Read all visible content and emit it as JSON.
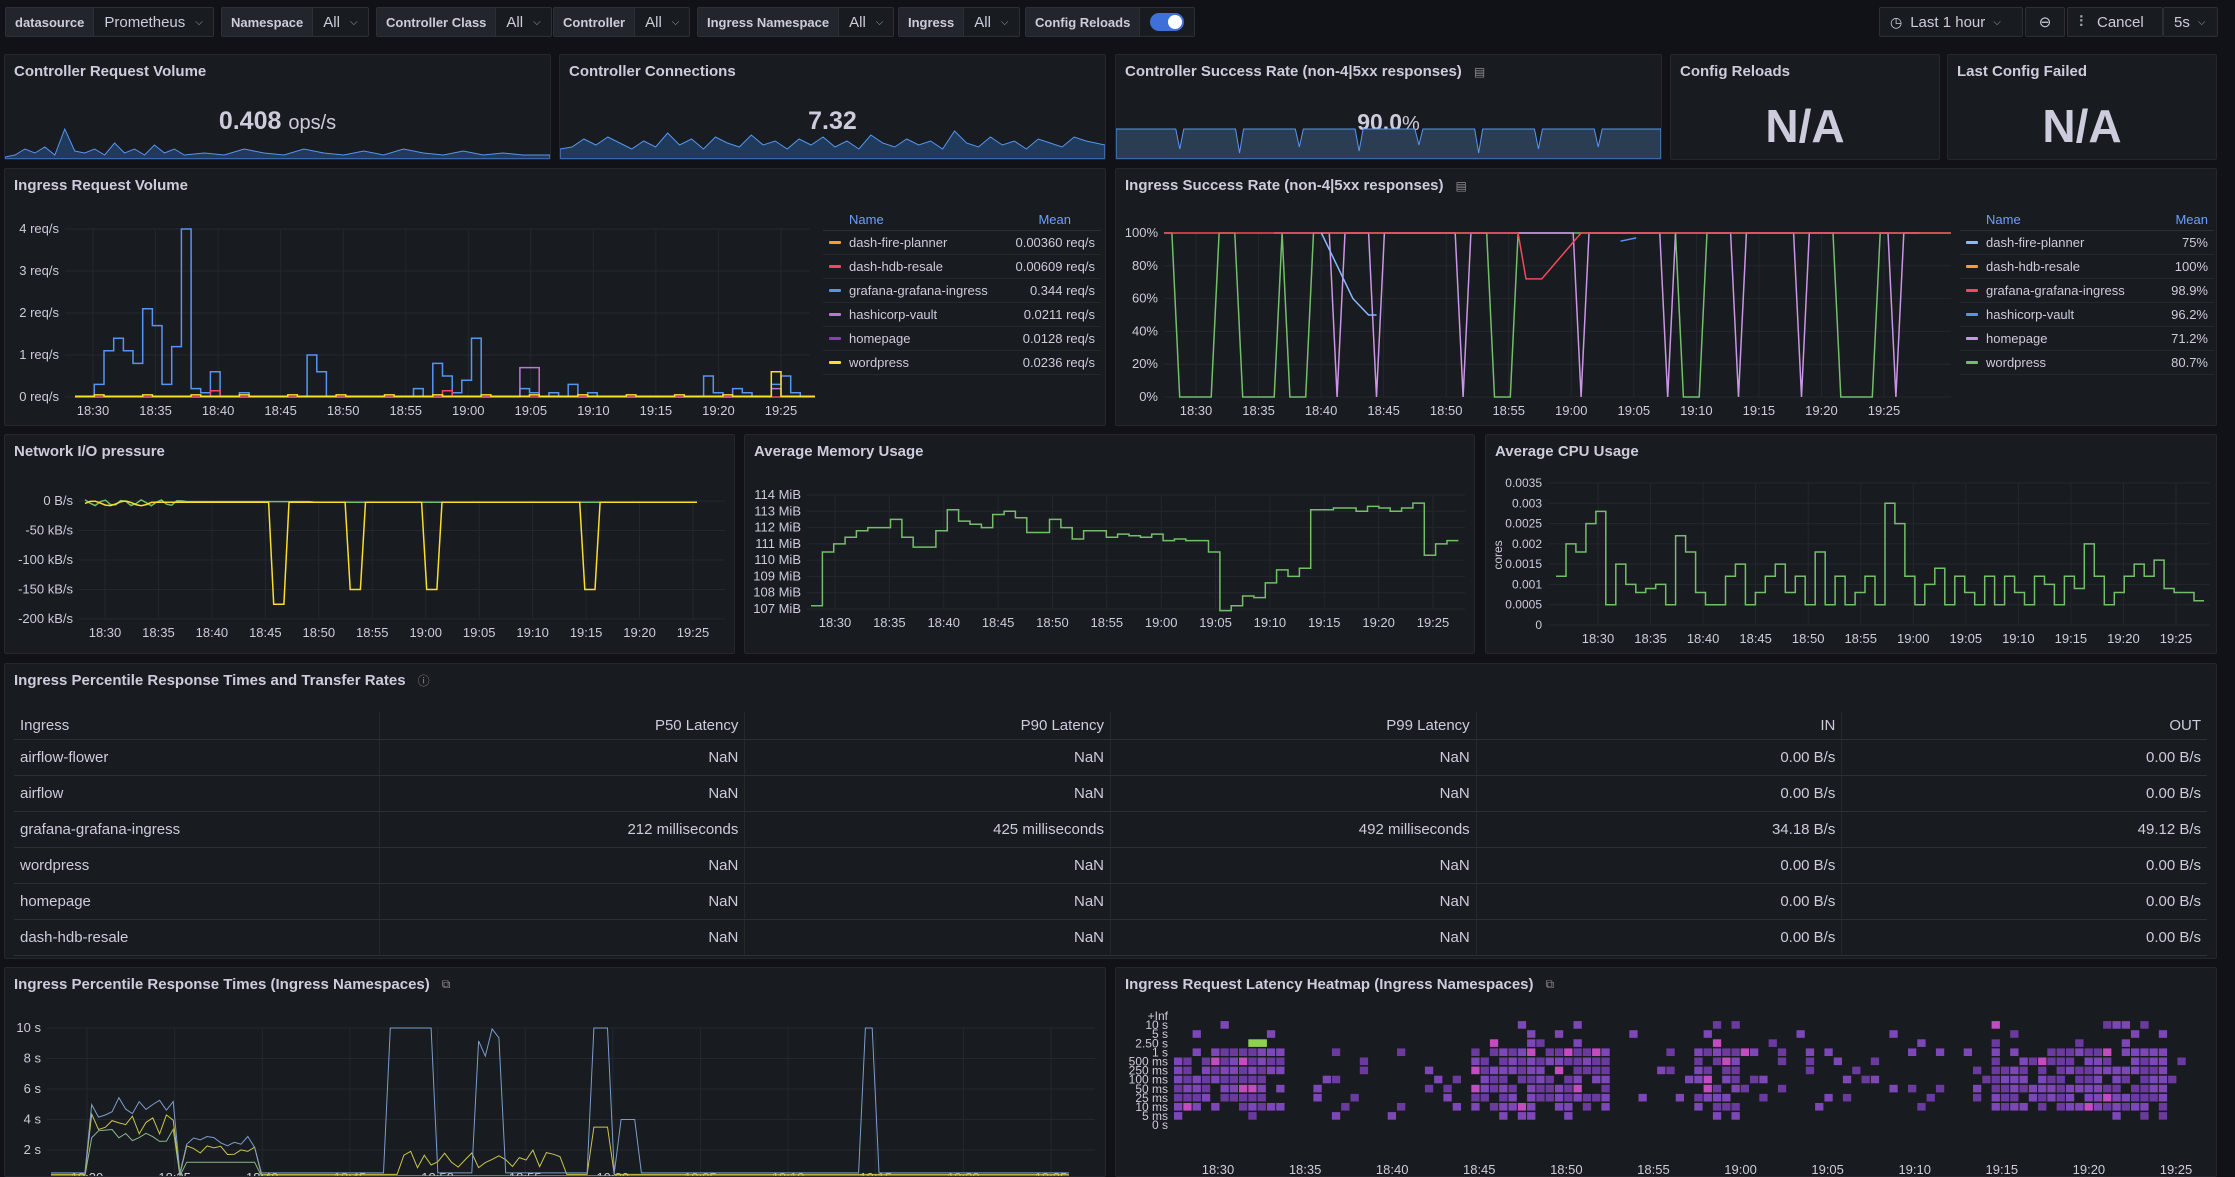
{
  "topbar": {
    "vars": [
      {
        "label": "datasource",
        "value": "Prometheus"
      },
      {
        "label": "Namespace",
        "value": "All"
      },
      {
        "label": "Controller Class",
        "value": "All"
      },
      {
        "label": "Controller",
        "value": "All"
      },
      {
        "label": "Ingress Namespace",
        "value": "All"
      },
      {
        "label": "Ingress",
        "value": "All"
      }
    ],
    "toggle_label": "Config Reloads",
    "time_range": "Last 1 hour",
    "cancel_label": "Cancel",
    "refresh": "5s"
  },
  "stats": {
    "request_volume": {
      "title": "Controller Request Volume",
      "value": "0.408",
      "unit": "ops/s"
    },
    "connections": {
      "title": "Controller Connections",
      "value": "7.32"
    },
    "success_rate": {
      "title": "Controller Success Rate (non-4|5xx responses)",
      "value": "90.0",
      "unit": "%"
    },
    "config_reloads": {
      "title": "Config Reloads",
      "value": "N/A"
    },
    "last_config_failed": {
      "title": "Last Config Failed",
      "value": "N/A"
    }
  },
  "time_ticks": [
    "18:30",
    "18:35",
    "18:40",
    "18:45",
    "18:50",
    "18:55",
    "19:00",
    "19:05",
    "19:10",
    "19:15",
    "19:20",
    "19:25"
  ],
  "colors": {
    "dash-fire-planner": "#ff9830",
    "dash-hdb-resale": "#f2495c",
    "grafana-grafana-ingress": "#5794f2",
    "hashicorp-vault": "#b877d9",
    "homepage": "#8f3bb8",
    "wordpress": "#fade2a",
    "green": "#73bf69",
    "blue_area": "#5794f2"
  },
  "ingress_volume": {
    "title": "Ingress Request Volume",
    "legend_name": "Name",
    "legend_mean": "Mean",
    "legend": [
      {
        "name": "dash-fire-planner",
        "mean": "0.00360 req/s",
        "color": "#ff9830"
      },
      {
        "name": "dash-hdb-resale",
        "mean": "0.00609 req/s",
        "color": "#f2495c"
      },
      {
        "name": "grafana-grafana-ingress",
        "mean": "0.344 req/s",
        "color": "#5794f2"
      },
      {
        "name": "hashicorp-vault",
        "mean": "0.0211 req/s",
        "color": "#b877d9"
      },
      {
        "name": "homepage",
        "mean": "0.0128 req/s",
        "color": "#8f3bb8"
      },
      {
        "name": "wordpress",
        "mean": "0.0236 req/s",
        "color": "#fade2a"
      }
    ],
    "yticks": [
      "0 req/s",
      "1 req/s",
      "2 req/s",
      "3 req/s",
      "4 req/s"
    ]
  },
  "ingress_success": {
    "title": "Ingress Success Rate (non-4|5xx responses)",
    "legend_name": "Name",
    "legend_mean": "Mean",
    "legend": [
      {
        "name": "dash-fire-planner",
        "mean": "75%",
        "color": "#8ab8ff"
      },
      {
        "name": "dash-hdb-resale",
        "mean": "100%",
        "color": "#ff9830"
      },
      {
        "name": "grafana-grafana-ingress",
        "mean": "98.9%",
        "color": "#f2495c"
      },
      {
        "name": "hashicorp-vault",
        "mean": "96.2%",
        "color": "#5794f2"
      },
      {
        "name": "homepage",
        "mean": "71.2%",
        "color": "#ca95e5"
      },
      {
        "name": "wordpress",
        "mean": "80.7%",
        "color": "#73bf69"
      }
    ],
    "yticks": [
      "0%",
      "20%",
      "40%",
      "60%",
      "80%",
      "100%"
    ]
  },
  "network": {
    "title": "Network I/O pressure",
    "yticks": [
      "0 B/s",
      "-50 kB/s",
      "-100 kB/s",
      "-150 kB/s",
      "-200 kB/s"
    ]
  },
  "memory": {
    "title": "Average Memory Usage",
    "yticks": [
      "107 MiB",
      "108 MiB",
      "109 MiB",
      "110 MiB",
      "111 MiB",
      "112 MiB",
      "113 MiB",
      "114 MiB"
    ]
  },
  "cpu": {
    "title": "Average CPU Usage",
    "ylabel": "cores",
    "yticks": [
      "0",
      "0.0005",
      "0.001",
      "0.0015",
      "0.002",
      "0.0025",
      "0.003",
      "0.0035"
    ]
  },
  "table": {
    "title": "Ingress Percentile Response Times and Transfer Rates",
    "headers": [
      "Ingress",
      "P50 Latency",
      "P90 Latency",
      "P99 Latency",
      "IN",
      "OUT"
    ],
    "rows": [
      [
        "airflow-flower",
        "NaN",
        "NaN",
        "NaN",
        "0.00 B/s",
        "0.00 B/s"
      ],
      [
        "airflow",
        "NaN",
        "NaN",
        "NaN",
        "0.00 B/s",
        "0.00 B/s"
      ],
      [
        "grafana-grafana-ingress",
        "212 milliseconds",
        "425 milliseconds",
        "492 milliseconds",
        "34.18 B/s",
        "49.12 B/s"
      ],
      [
        "wordpress",
        "NaN",
        "NaN",
        "NaN",
        "0.00 B/s",
        "0.00 B/s"
      ],
      [
        "homepage",
        "NaN",
        "NaN",
        "NaN",
        "0.00 B/s",
        "0.00 B/s"
      ],
      [
        "dash-hdb-resale",
        "NaN",
        "NaN",
        "NaN",
        "0.00 B/s",
        "0.00 B/s"
      ]
    ]
  },
  "percentile": {
    "title": "Ingress Percentile Response Times (Ingress Namespaces)",
    "yticks": [
      "2 s",
      "4 s",
      "6 s",
      "8 s",
      "10 s"
    ]
  },
  "heatmap": {
    "title": "Ingress Request Latency Heatmap (Ingress Namespaces)",
    "yticks": [
      "0 s",
      "5 ms",
      "10 ms",
      "25 ms",
      "50 ms",
      "100 ms",
      "250 ms",
      "500 ms",
      "1 s",
      "2.50 s",
      "5 s",
      "10 s",
      "+Inf"
    ]
  }
}
